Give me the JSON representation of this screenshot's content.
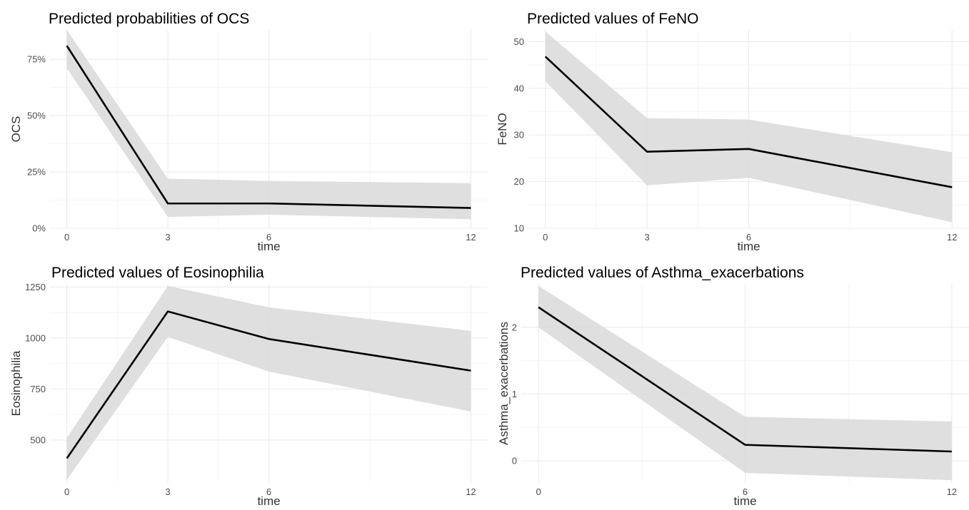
{
  "chart_data": [
    {
      "type": "line",
      "title": "Predicted probabilities of OCS",
      "xlabel": "time",
      "ylabel": "OCS",
      "x": [
        0,
        3,
        6,
        12
      ],
      "xticks": [
        "0",
        "3",
        "6",
        "12"
      ],
      "xlim": [
        -0.5,
        12.5
      ],
      "ylim": [
        0,
        0.88
      ],
      "yticks": [
        0,
        0.25,
        0.5,
        0.75
      ],
      "yticklabels": [
        "0%",
        "25%",
        "50%",
        "75%"
      ],
      "series": [
        {
          "values": [
            0.81,
            0.11,
            0.11,
            0.09
          ],
          "ci_low": [
            0.71,
            0.05,
            0.06,
            0.04
          ],
          "ci_high": [
            0.88,
            0.22,
            0.21,
            0.2
          ]
        }
      ],
      "grid": true
    },
    {
      "type": "line",
      "title": "Predicted values of FeNO",
      "xlabel": "time",
      "ylabel": "FeNO",
      "x": [
        0,
        3,
        6,
        12
      ],
      "xticks": [
        "0",
        "3",
        "6",
        "12"
      ],
      "xlim": [
        -0.5,
        12.5
      ],
      "ylim": [
        10,
        52.5
      ],
      "yticks": [
        10,
        20,
        30,
        40,
        50
      ],
      "yticklabels": [
        "10",
        "20",
        "30",
        "40",
        "50"
      ],
      "series": [
        {
          "values": [
            46.8,
            26.4,
            27.0,
            18.8
          ],
          "ci_low": [
            41.5,
            19.2,
            20.8,
            11.3
          ],
          "ci_high": [
            52.2,
            33.6,
            33.3,
            26.3
          ]
        }
      ],
      "grid": true
    },
    {
      "type": "line",
      "title": "Predicted values of Eosinophilia",
      "xlabel": "time",
      "ylabel": "Eosinophilia",
      "x": [
        0,
        3,
        6,
        12
      ],
      "xticks": [
        "0",
        "3",
        "6",
        "12"
      ],
      "xlim": [
        -0.5,
        12.5
      ],
      "ylim": [
        290,
        1265
      ],
      "yticks": [
        500,
        750,
        1000,
        1250
      ],
      "yticklabels": [
        "500",
        "750",
        "1000",
        "1250"
      ],
      "series": [
        {
          "values": [
            410,
            1130,
            995,
            840
          ],
          "ci_low": [
            305,
            1005,
            835,
            640
          ],
          "ci_high": [
            510,
            1255,
            1150,
            1035
          ]
        }
      ],
      "grid": true
    },
    {
      "type": "line",
      "title": "Predicted values of Asthma_exacerbations",
      "xlabel": "time",
      "ylabel": "Asthma_exacerbations",
      "x": [
        0,
        6,
        12
      ],
      "xticks": [
        "0",
        "6",
        "12"
      ],
      "xlim": [
        -0.5,
        12.5
      ],
      "ylim": [
        -0.33,
        2.65
      ],
      "yticks": [
        0,
        1,
        2
      ],
      "yticklabels": [
        "0",
        "1",
        "2"
      ],
      "series": [
        {
          "values": [
            2.3,
            0.24,
            0.14
          ],
          "ci_low": [
            2.0,
            -0.18,
            -0.29
          ],
          "ci_high": [
            2.62,
            0.66,
            0.59
          ]
        }
      ],
      "grid": true
    }
  ]
}
